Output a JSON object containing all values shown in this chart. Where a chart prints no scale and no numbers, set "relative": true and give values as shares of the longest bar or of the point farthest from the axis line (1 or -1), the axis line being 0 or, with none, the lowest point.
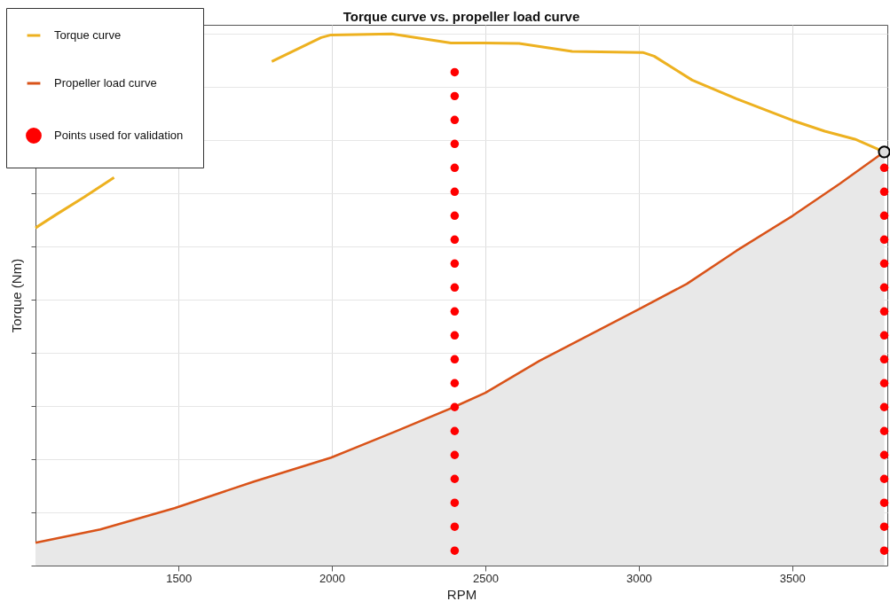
{
  "chart_data": {
    "type": "line",
    "title": "Torque curve vs. propeller load curve",
    "xlabel": "RPM",
    "ylabel": "Torque (Nm)",
    "relative": true,
    "xlim": [
      1034,
      3810
    ],
    "xticks": [
      1500,
      2000,
      2500,
      3000,
      3500
    ],
    "grid": true,
    "legend": "top left",
    "series": [
      {
        "name": "Torque curve",
        "color": "#edb120",
        "x": [
          1034,
          1101,
          1193,
          1290,
          1600,
          1804,
          1965,
          1997,
          2195,
          2388,
          2495,
          2610,
          2783,
          3013,
          3050,
          3174,
          3318,
          3502,
          3606,
          3704,
          3800
        ],
        "values": [
          0.635,
          0.66,
          0.693,
          0.73,
          null,
          0.948,
          0.993,
          0.998,
          1.0,
          0.983,
          0.983,
          0.982,
          0.967,
          0.965,
          0.958,
          0.913,
          0.878,
          0.837,
          0.817,
          0.802,
          0.778
        ]
      },
      {
        "name": "Propeller load curve",
        "type": "area",
        "color": "#d95319",
        "x": [
          1034,
          1245,
          1487,
          1746,
          1997,
          2206,
          2397,
          2500,
          2676,
          3000,
          3157,
          3318,
          3502,
          3655,
          3800
        ],
        "values": [
          0.043,
          0.068,
          0.108,
          0.158,
          0.203,
          0.252,
          0.298,
          0.325,
          0.385,
          0.482,
          0.53,
          0.592,
          0.658,
          0.718,
          0.778
        ]
      },
      {
        "name": "Points used for validation",
        "type": "scatter",
        "color": "#ff0000",
        "marker": "circle",
        "x": [
          2400,
          2400,
          2400,
          2400,
          2400,
          2400,
          2400,
          2400,
          2400,
          2400,
          2400,
          2400,
          2400,
          2400,
          2400,
          2400,
          2400,
          2400,
          2400,
          2400,
          2400,
          3800,
          3800,
          3800,
          3800,
          3800,
          3800,
          3800,
          3800,
          3800,
          3800,
          3800,
          3800,
          3800,
          3800,
          3800,
          3800,
          3800
        ],
        "values": [
          0.928,
          0.883,
          0.838,
          0.793,
          0.748,
          0.703,
          0.658,
          0.613,
          0.568,
          0.523,
          0.478,
          0.433,
          0.388,
          0.343,
          0.298,
          0.253,
          0.208,
          0.163,
          0.118,
          0.073,
          0.028,
          0.748,
          0.703,
          0.658,
          0.613,
          0.568,
          0.523,
          0.478,
          0.433,
          0.388,
          0.343,
          0.298,
          0.253,
          0.208,
          0.163,
          0.118,
          0.073,
          0.028
        ]
      },
      {
        "type": "scatter",
        "color": "#000000",
        "marker": "circle",
        "x": [
          3800
        ],
        "values": [
          0.778
        ]
      }
    ]
  }
}
